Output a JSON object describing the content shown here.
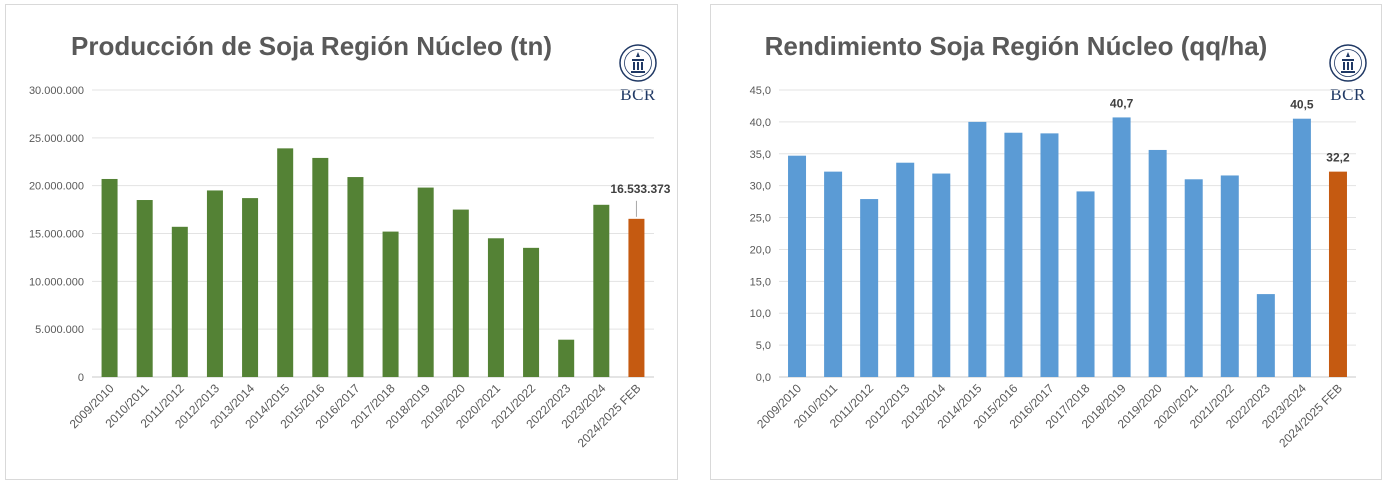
{
  "colors": {
    "green_bar": "#548235",
    "blue_bar": "#5b9bd5",
    "highlight_bar": "#c55a11",
    "gridline": "#e3e3e3",
    "axis": "#c9c9c9",
    "logo": "#1f3864"
  },
  "logo": {
    "text": "BCR",
    "icon": "bcr-seal-icon"
  },
  "chart_data": [
    {
      "type": "bar",
      "title": "Producción de Soja Región Núcleo (tn)",
      "xlabel": "",
      "ylabel": "",
      "categories": [
        "2009/2010",
        "2010/2011",
        "2011/2012",
        "2012/2013",
        "2013/2014",
        "2014/2015",
        "2015/2016",
        "2016/2017",
        "2017/2018",
        "2018/2019",
        "2019/2020",
        "2020/2021",
        "2021/2022",
        "2022/2023",
        "2023/2024",
        "2024/2025 FEB"
      ],
      "values": [
        20700000,
        18500000,
        15700000,
        19500000,
        18700000,
        23900000,
        22900000,
        20900000,
        15200000,
        19800000,
        17500000,
        14500000,
        13500000,
        3900000,
        18000000,
        16533373
      ],
      "ylim": [
        0,
        30000000
      ],
      "yticks": [
        0,
        5000000,
        10000000,
        15000000,
        20000000,
        25000000,
        30000000
      ],
      "ytick_labels": [
        "0",
        "5.000.000",
        "10.000.000",
        "15.000.000",
        "20.000.000",
        "25.000.000",
        "30.000.000"
      ],
      "highlight_index": 15,
      "data_labels": [
        {
          "index": 15,
          "text": "16.533.373"
        }
      ],
      "grid": true,
      "legend": "none"
    },
    {
      "type": "bar",
      "title": "Rendimiento Soja Región Núcleo (qq/ha)",
      "xlabel": "",
      "ylabel": "",
      "categories": [
        "2009/2010",
        "2010/2011",
        "2011/2012",
        "2012/2013",
        "2013/2014",
        "2014/2015",
        "2015/2016",
        "2016/2017",
        "2017/2018",
        "2018/2019",
        "2019/2020",
        "2020/2021",
        "2021/2022",
        "2022/2023",
        "2023/2024",
        "2024/2025 FEB"
      ],
      "values": [
        34.7,
        32.2,
        27.9,
        33.6,
        31.9,
        40.0,
        38.3,
        38.2,
        29.1,
        40.7,
        35.6,
        31.0,
        31.6,
        13.0,
        40.5,
        32.2
      ],
      "ylim": [
        0,
        45
      ],
      "yticks": [
        0,
        5,
        10,
        15,
        20,
        25,
        30,
        35,
        40,
        45
      ],
      "ytick_labels": [
        "0,0",
        "5,0",
        "10,0",
        "15,0",
        "20,0",
        "25,0",
        "30,0",
        "35,0",
        "40,0",
        "45,0"
      ],
      "highlight_index": 15,
      "data_labels": [
        {
          "index": 9,
          "text": "40,7"
        },
        {
          "index": 14,
          "text": "40,5"
        },
        {
          "index": 15,
          "text": "32,2"
        }
      ],
      "grid": true,
      "legend": "none"
    }
  ]
}
